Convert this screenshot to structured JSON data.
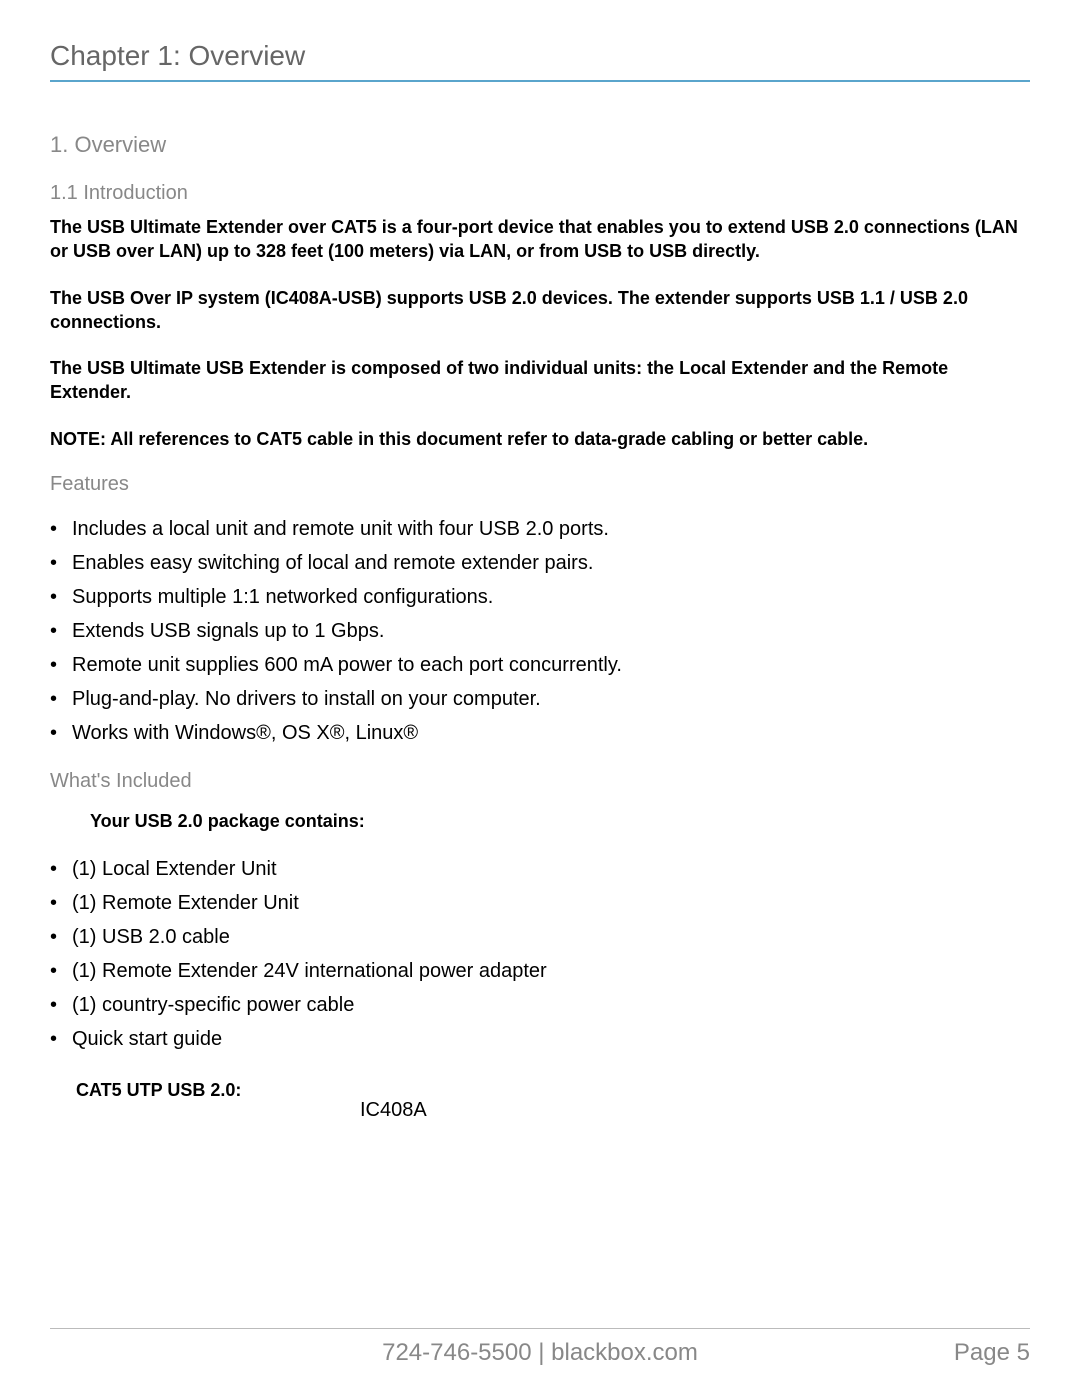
{
  "chapter_header": "Chapter 1: Overview",
  "section_title": "1. Overview",
  "subsection_title": "1.1 Introduction",
  "intro_para1": "The USB Ultimate Extender over CAT5 is a four-port device that enables you to extend USB 2.0 connections (LAN or USB over LAN) up to 328 feet (100 meters) via LAN, or from USB to USB directly.",
  "intro_para2": "The USB Over IP system (IC408A-USB) supports USB 2.0 devices. The extender supports USB 1.1 / USB 2.0 connections.",
  "intro_para3": "The USB Ultimate USB Extender is composed of two individual units: the Local Extender and the Remote Extender.",
  "note_text": "NOTE: All references to CAT5 cable in this document refer to data-grade cabling or better cable.",
  "features_heading": "Features",
  "features": [
    "Includes a local unit and remote unit with four USB 2.0 ports.",
    "Enables easy switching of local and remote extender pairs.",
    "Supports multiple 1:1 networked configurations.",
    "Extends USB signals up to 1 Gbps.",
    "Remote unit supplies 600 mA power to each port concurrently.",
    "Plug-and-play. No drivers to install on your computer.",
    "Works with Windows®, OS X®, Linux®"
  ],
  "whats_included_heading": "What's Included",
  "package_head": "Your USB 2.0 package contains:",
  "package_items": [
    "(1) Local Extender Unit",
    "(1) Remote Extender Unit",
    "(1) USB 2.0 cable",
    "(1) Remote Extender 24V international power adapter",
    "(1) country-specific power cable",
    "Quick start guide"
  ],
  "cat5_label": "CAT5 UTP USB 2.0:",
  "cat5_value": "IC408A",
  "footer_center": "724-746-5500 | blackbox.com",
  "footer_pagenum": "Page 5"
}
